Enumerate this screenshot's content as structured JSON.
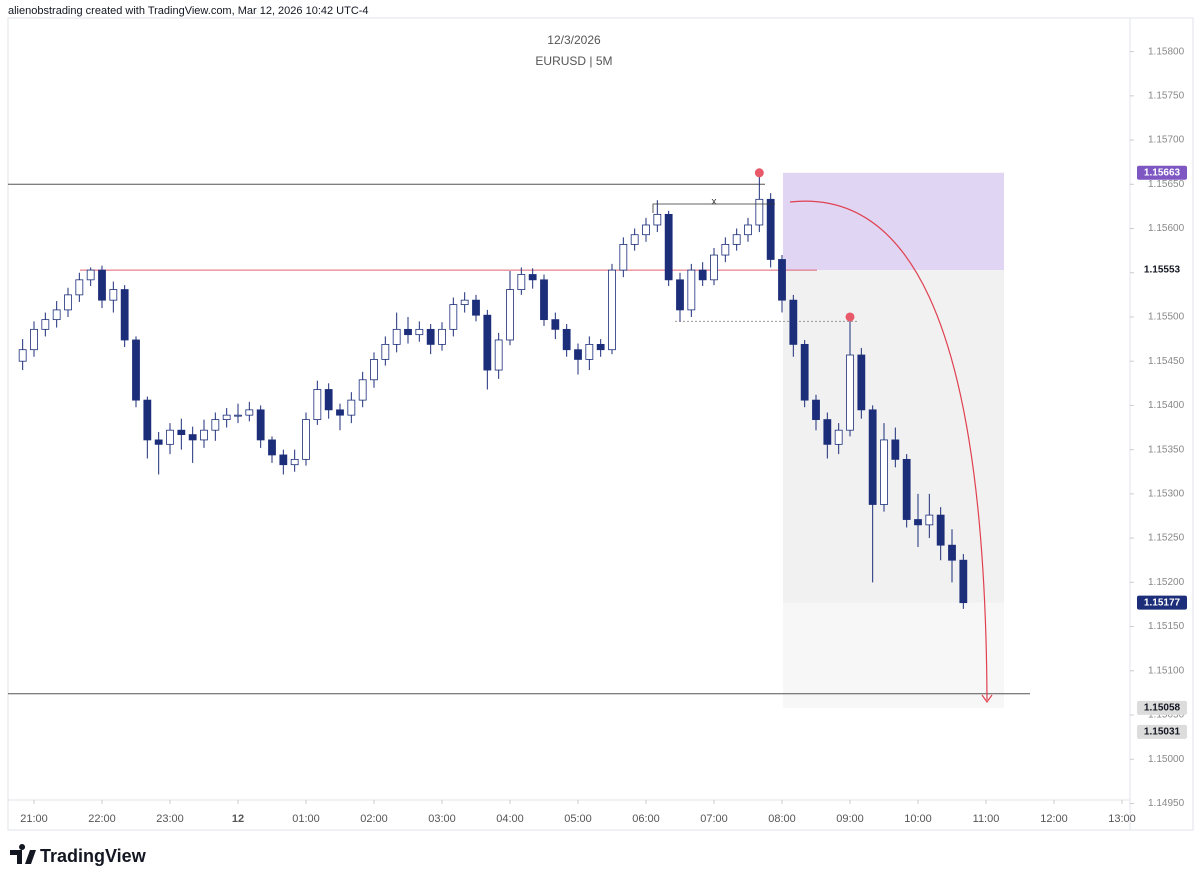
{
  "chart_data": {
    "type": "candlestick",
    "header": "alienobstrading created with TradingView.com, Mar 12, 2026 10:42 UTC-4",
    "title": "12/3/2026",
    "subtitle": "EURUSD | 5M",
    "logo": "TradingView",
    "up_color": "#ffffff",
    "down_color": "#1c2e7a",
    "outline_color": "#1c2e7a",
    "x": [
      "20:50",
      "21:00",
      "21:10",
      "21:20",
      "21:30",
      "21:40",
      "21:50",
      "22:00",
      "22:10",
      "22:20",
      "22:30",
      "22:40",
      "22:50",
      "23:00",
      "23:10",
      "23:20",
      "23:30",
      "23:40",
      "23:50",
      "00:00",
      "00:10",
      "00:20",
      "00:30",
      "00:40",
      "00:50",
      "01:00",
      "01:10",
      "01:20",
      "01:30",
      "01:40",
      "01:50",
      "02:00",
      "02:10",
      "02:20",
      "02:30",
      "02:40",
      "02:50",
      "03:00",
      "03:10",
      "03:20",
      "03:30",
      "03:40",
      "03:50",
      "04:00",
      "04:10",
      "04:20",
      "04:30",
      "04:40",
      "04:50",
      "05:00",
      "05:10",
      "05:20",
      "05:30",
      "05:40",
      "05:50",
      "06:00",
      "06:10",
      "06:20",
      "06:30",
      "06:40",
      "06:50",
      "07:00",
      "07:10",
      "07:20",
      "07:30",
      "07:40",
      "07:50",
      "08:00",
      "08:10",
      "08:20",
      "08:30",
      "08:40",
      "08:50",
      "09:00",
      "09:10",
      "09:20",
      "09:30",
      "09:40",
      "09:50",
      "10:00",
      "10:10",
      "10:20",
      "10:30",
      "10:40"
    ],
    "open": [
      1.1545,
      1.15463,
      1.15486,
      1.15497,
      1.15508,
      1.15525,
      1.15542,
      1.15553,
      1.15519,
      1.15531,
      1.15474,
      1.15406,
      1.15361,
      1.15356,
      1.15372,
      1.15367,
      1.15361,
      1.15372,
      1.15384,
      1.15389,
      1.15389,
      1.15395,
      1.15361,
      1.15344,
      1.15333,
      1.15339,
      1.15384,
      1.15418,
      1.15395,
      1.15389,
      1.15406,
      1.15429,
      1.15452,
      1.15469,
      1.15486,
      1.1548,
      1.15486,
      1.15469,
      1.15486,
      1.15514,
      1.15519,
      1.15502,
      1.1544,
      1.15474,
      1.15531,
      1.15548,
      1.15542,
      1.15497,
      1.15486,
      1.15463,
      1.15452,
      1.15469,
      1.15463,
      1.15553,
      1.15582,
      1.15593,
      1.15604,
      1.15616,
      1.15542,
      1.15508,
      1.15553,
      1.15542,
      1.1557,
      1.15582,
      1.15593,
      1.15604,
      1.15633,
      1.15565,
      1.15519,
      1.15469,
      1.15406,
      1.15384,
      1.15356,
      1.15372,
      1.15457,
      1.15395,
      1.15288,
      1.15361,
      1.15339,
      1.15271,
      1.15265,
      1.15276,
      1.15242,
      1.15225
    ],
    "high": [
      1.15475,
      1.15495,
      1.15505,
      1.15518,
      1.15533,
      1.1555,
      1.15556,
      1.15558,
      1.1554,
      1.15536,
      1.15478,
      1.1541,
      1.1537,
      1.1538,
      1.15385,
      1.15376,
      1.15384,
      1.15392,
      1.15397,
      1.15402,
      1.15404,
      1.154,
      1.15365,
      1.1535,
      1.1535,
      1.15392,
      1.15428,
      1.15425,
      1.15402,
      1.15415,
      1.15438,
      1.1546,
      1.15478,
      1.15505,
      1.155,
      1.15495,
      1.15492,
      1.15494,
      1.15522,
      1.15528,
      1.15525,
      1.15508,
      1.15482,
      1.15552,
      1.15556,
      1.15555,
      1.15548,
      1.15505,
      1.15492,
      1.1547,
      1.15478,
      1.15475,
      1.1556,
      1.1559,
      1.156,
      1.15612,
      1.15632,
      1.1562,
      1.1555,
      1.1556,
      1.15562,
      1.15578,
      1.1559,
      1.156,
      1.15612,
      1.15663,
      1.1564,
      1.1557,
      1.15525,
      1.15474,
      1.15412,
      1.15392,
      1.1538,
      1.155,
      1.15465,
      1.154,
      1.1538,
      1.15375,
      1.15345,
      1.153,
      1.153,
      1.15285,
      1.1526,
      1.15232
    ],
    "low": [
      1.1544,
      1.15455,
      1.15478,
      1.15488,
      1.155,
      1.15517,
      1.15535,
      1.1551,
      1.15505,
      1.15466,
      1.15398,
      1.1534,
      1.15322,
      1.15345,
      1.1535,
      1.15335,
      1.15352,
      1.1536,
      1.15375,
      1.1538,
      1.15382,
      1.15352,
      1.15335,
      1.15322,
      1.15325,
      1.15332,
      1.15378,
      1.15385,
      1.15372,
      1.1538,
      1.15398,
      1.1542,
      1.15445,
      1.1546,
      1.1547,
      1.15472,
      1.15458,
      1.15462,
      1.15478,
      1.15505,
      1.15495,
      1.15418,
      1.1543,
      1.15468,
      1.15525,
      1.15532,
      1.1549,
      1.15475,
      1.15455,
      1.15435,
      1.1544,
      1.15455,
      1.15458,
      1.15545,
      1.15575,
      1.15585,
      1.15596,
      1.15535,
      1.15495,
      1.155,
      1.15535,
      1.15536,
      1.15562,
      1.15575,
      1.15585,
      1.15596,
      1.15556,
      1.15505,
      1.15455,
      1.15398,
      1.15372,
      1.1534,
      1.15345,
      1.15365,
      1.15385,
      1.152,
      1.1528,
      1.1533,
      1.15262,
      1.1524,
      1.1525,
      1.15225,
      1.152,
      1.1517
    ],
    "close": [
      1.15463,
      1.15486,
      1.15497,
      1.15508,
      1.15525,
      1.15542,
      1.15553,
      1.15519,
      1.15531,
      1.15474,
      1.15406,
      1.15361,
      1.15356,
      1.15372,
      1.15367,
      1.15361,
      1.15372,
      1.15384,
      1.15389,
      1.15389,
      1.15395,
      1.15361,
      1.15344,
      1.15333,
      1.15339,
      1.15384,
      1.15418,
      1.15395,
      1.15389,
      1.15406,
      1.15429,
      1.15452,
      1.15469,
      1.15486,
      1.1548,
      1.15486,
      1.15469,
      1.15486,
      1.15514,
      1.15519,
      1.15502,
      1.1544,
      1.15474,
      1.15531,
      1.15548,
      1.15542,
      1.15497,
      1.15486,
      1.15463,
      1.15452,
      1.15469,
      1.15463,
      1.15553,
      1.15582,
      1.15593,
      1.15604,
      1.15616,
      1.15542,
      1.15508,
      1.15553,
      1.15542,
      1.1557,
      1.15582,
      1.15593,
      1.15604,
      1.15633,
      1.15565,
      1.15519,
      1.15469,
      1.15406,
      1.15384,
      1.15356,
      1.15372,
      1.15457,
      1.15395,
      1.15288,
      1.15361,
      1.15339,
      1.15271,
      1.15265,
      1.15276,
      1.15242,
      1.15225,
      1.15177
    ],
    "ylim": [
      1.1492,
      1.15838
    ],
    "yticks": [
      {
        "value": 1.1495,
        "label": "1.14950"
      },
      {
        "value": 1.15,
        "label": "1.15000"
      },
      {
        "value": 1.1505,
        "label": "1.15050"
      },
      {
        "value": 1.151,
        "label": "1.15100"
      },
      {
        "value": 1.1515,
        "label": "1.15150"
      },
      {
        "value": 1.152,
        "label": "1.15200"
      },
      {
        "value": 1.1525,
        "label": "1.15250"
      },
      {
        "value": 1.153,
        "label": "1.15300"
      },
      {
        "value": 1.1535,
        "label": "1.15350"
      },
      {
        "value": 1.154,
        "label": "1.15400"
      },
      {
        "value": 1.1545,
        "label": "1.15450"
      },
      {
        "value": 1.155,
        "label": "1.15500"
      },
      {
        "value": 1.1555,
        "label": "1.15550"
      },
      {
        "value": 1.156,
        "label": "1.15600"
      },
      {
        "value": 1.1565,
        "label": "1.15650"
      },
      {
        "value": 1.157,
        "label": "1.15700"
      },
      {
        "value": 1.1575,
        "label": "1.15750"
      },
      {
        "value": 1.158,
        "label": "1.15800"
      }
    ],
    "xticks": [
      "21:00",
      "22:00",
      "23:00",
      {
        "value": "00:00",
        "label": "12"
      },
      "01:00",
      "02:00",
      "03:00",
      "04:00",
      "05:00",
      "06:00",
      "07:00",
      "08:00",
      "09:00",
      "10:00",
      "11:00",
      "12:00",
      "13:00"
    ],
    "zones": [
      {
        "top": 1.15663,
        "bottom": 1.15553,
        "color": "#e0d6f3"
      },
      {
        "top": 1.15553,
        "bottom": 1.15177,
        "color": "#f1f1f1"
      },
      {
        "top": 1.15177,
        "bottom": 1.15058,
        "color": "#f7f7f7"
      }
    ],
    "levels": [
      {
        "value": 1.1565,
        "color": "#555555"
      },
      {
        "value": 1.15553,
        "color": "#e06070"
      },
      {
        "value": 1.15074,
        "color": "#555555"
      },
      {
        "value": 1.15495,
        "color": "#999999"
      }
    ],
    "markers": [
      {
        "x": "07:40",
        "value": 1.15663,
        "color": "#e85a6a"
      },
      {
        "x": "09:00",
        "value": 1.155,
        "color": "#e85a6a"
      }
    ],
    "annotation": {
      "text": "x",
      "value": 1.15629
    },
    "price_labels": [
      {
        "value": 1.15663,
        "label": "1.15663",
        "color": "#7e57c2",
        "text_color": "#ffffff"
      },
      {
        "value": 1.15553,
        "label": "1.15553",
        "color": "#ffffff",
        "text_color": "#131722"
      },
      {
        "value": 1.15177,
        "label": "1.15177",
        "color": "#1c2e7a",
        "text_color": "#ffffff"
      },
      {
        "value": 1.15058,
        "label": "1.15058",
        "color": "#dcdcdc",
        "text_color": "#131722"
      },
      {
        "value": 1.15031,
        "label": "1.15031",
        "color": "#dcdcdc",
        "text_color": "#131722"
      }
    ]
  }
}
